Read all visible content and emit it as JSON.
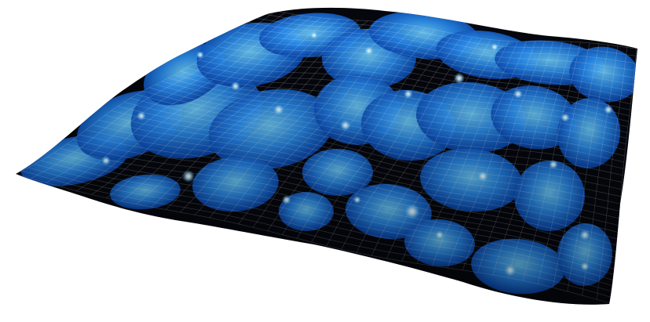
{
  "scene": {
    "subject": "wireframe-terrain-surface",
    "colors": {
      "background": "#ffffff",
      "surface_dark": "#05070d",
      "blob_dark": "#0a3a8c",
      "blob_mid": "#1f7fe0",
      "blob_light": "#5cc2ff",
      "highlight": "#d9f4ff",
      "grid_line": "#ffffff"
    }
  }
}
